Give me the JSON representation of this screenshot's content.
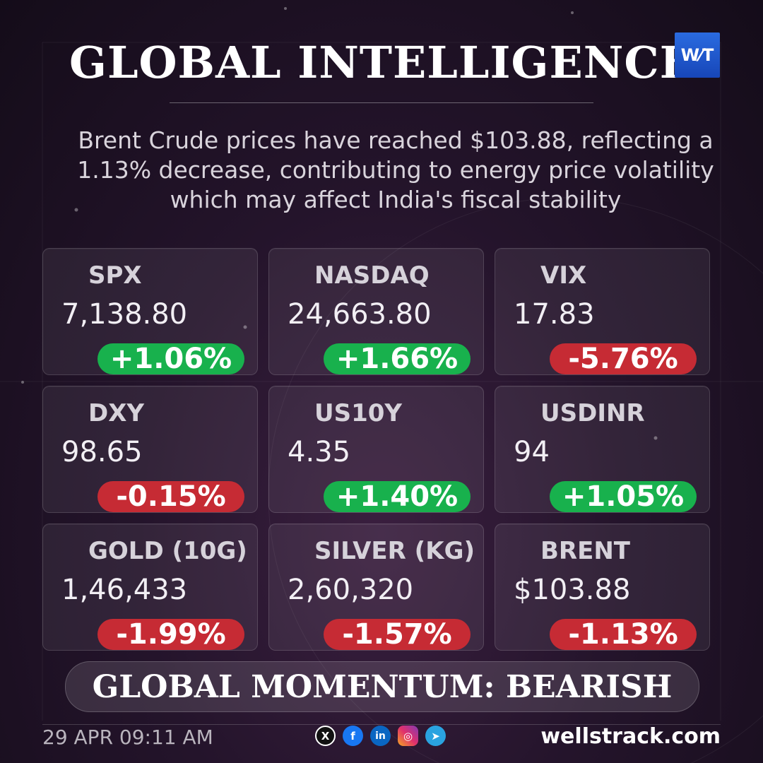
{
  "header": {
    "title": "GLOBAL INTELLIGENCE",
    "logo_text": "W⁄T"
  },
  "headline": "Brent Crude prices have reached $103.88, reflecting a 1.13% decrease, contributing to energy price volatility which may affect India's fiscal stability",
  "tiles": [
    {
      "name": "SPX",
      "value": "7,138.80",
      "change": "+1.06%",
      "direction": "up"
    },
    {
      "name": "NASDAQ",
      "value": "24,663.80",
      "change": "+1.66%",
      "direction": "up"
    },
    {
      "name": "VIX",
      "value": "17.83",
      "change": "-5.76%",
      "direction": "down"
    },
    {
      "name": "DXY",
      "value": "98.65",
      "change": "-0.15%",
      "direction": "down"
    },
    {
      "name": "US10Y",
      "value": "4.35",
      "change": "+1.40%",
      "direction": "up"
    },
    {
      "name": "USDINR",
      "value": "94",
      "change": "+1.05%",
      "direction": "up"
    },
    {
      "name": "GOLD (10G)",
      "value": "1,46,433",
      "change": "-1.99%",
      "direction": "down"
    },
    {
      "name": "SILVER (KG)",
      "value": "2,60,320",
      "change": "-1.57%",
      "direction": "down"
    },
    {
      "name": "BRENT",
      "value": "$103.88",
      "change": "-1.13%",
      "direction": "down"
    }
  ],
  "momentum": "GLOBAL MOMENTUM: BEARISH",
  "footer": {
    "timestamp": "29 APR 09:11 AM",
    "site": "wellstrack.com",
    "socials": [
      {
        "icon": "x-icon",
        "glyph": "X"
      },
      {
        "icon": "facebook-icon",
        "glyph": "f"
      },
      {
        "icon": "linkedin-icon",
        "glyph": "in"
      },
      {
        "icon": "instagram-icon",
        "glyph": "◎"
      },
      {
        "icon": "telegram-icon",
        "glyph": "➤"
      }
    ]
  },
  "colors": {
    "up": "#18b14d",
    "down": "#c62b34",
    "logo": "#1f5bd0"
  }
}
